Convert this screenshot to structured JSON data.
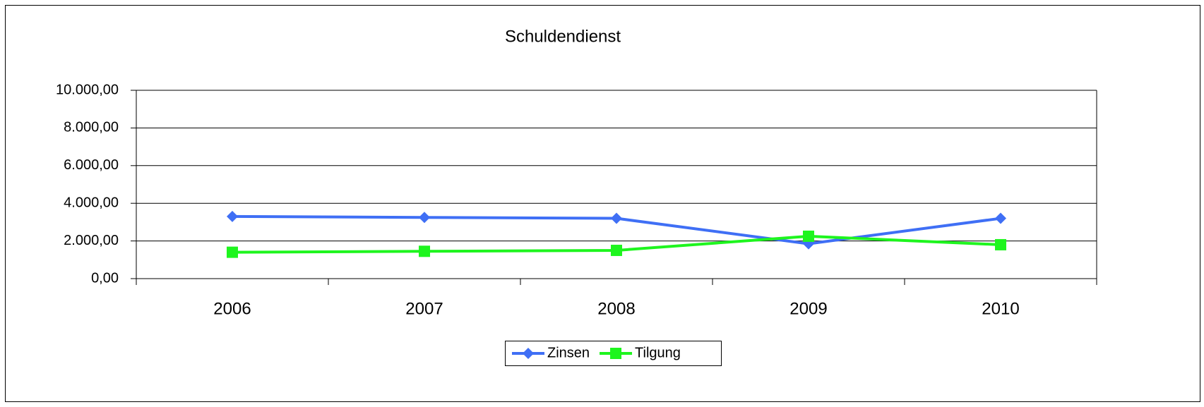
{
  "chart_data": {
    "type": "line",
    "title": "Schuldendienst",
    "categories": [
      "2006",
      "2007",
      "2008",
      "2009",
      "2010"
    ],
    "series": [
      {
        "name": "Zinsen",
        "color": "#3f6ff5",
        "marker": "diamond",
        "values": [
          3300,
          3250,
          3200,
          1850,
          3200
        ]
      },
      {
        "name": "Tilgung",
        "color": "#1ef51e",
        "marker": "square",
        "values": [
          1400,
          1450,
          1500,
          2250,
          1800
        ]
      }
    ],
    "ylim": [
      0,
      10000
    ],
    "yticks": [
      {
        "value": 0,
        "label": "0,00"
      },
      {
        "value": 2000,
        "label": "2.000,00"
      },
      {
        "value": 4000,
        "label": "4.000,00"
      },
      {
        "value": 6000,
        "label": "6.000,00"
      },
      {
        "value": 8000,
        "label": "8.000,00"
      },
      {
        "value": 10000,
        "label": "10.000,00"
      }
    ],
    "grid": true,
    "legend": "bottom"
  }
}
